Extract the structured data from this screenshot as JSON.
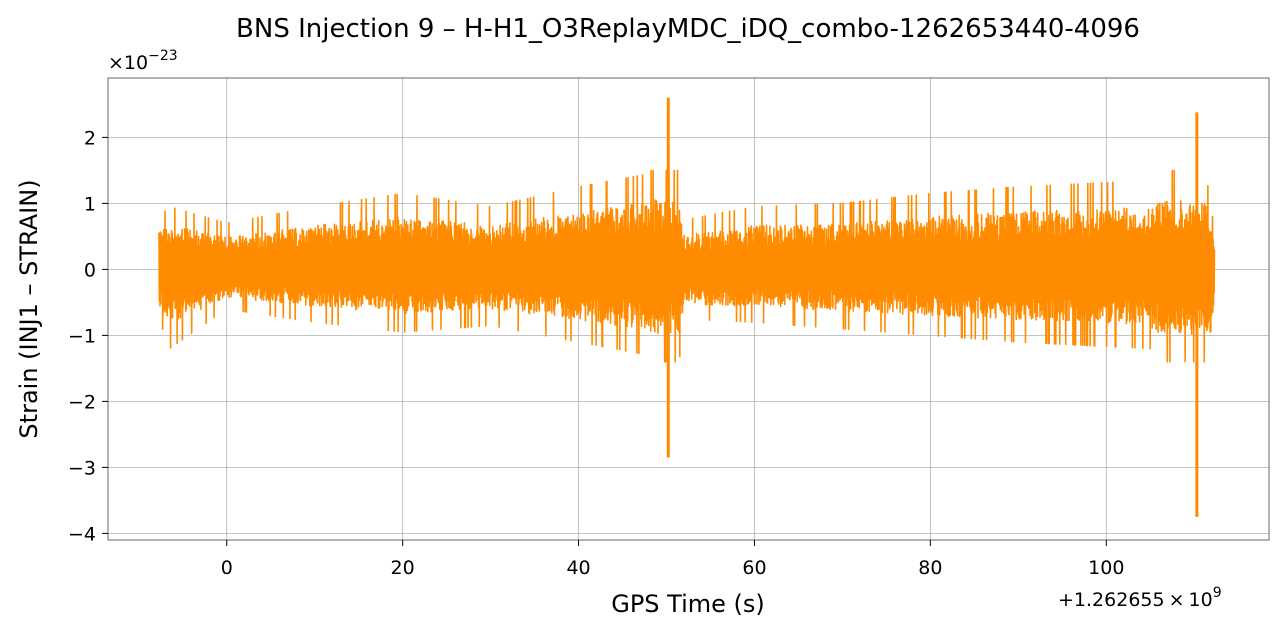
{
  "chart_data": {
    "type": "line",
    "title": "BNS Injection 9 – H-H1_O3ReplayMDC_iDQ_combo-1262653440-4096",
    "xlabel": "GPS Time (s)",
    "ylabel": "Strain (INJ1 – STRAIN)",
    "x_offset_label": "+1.262655×10⁹",
    "x_offset_parts": {
      "base": "+1.262655",
      "times": "×",
      "ten": "10",
      "exp": "9"
    },
    "y_multiplier_parts": {
      "times": "×",
      "ten": "10",
      "exp": "−23"
    },
    "xlim": [
      -13.5,
      118.5
    ],
    "ylim": [
      -4.1,
      2.9
    ],
    "xticks": [
      0,
      20,
      40,
      60,
      80,
      100
    ],
    "xtick_labels": [
      "0",
      "20",
      "40",
      "60",
      "80",
      "100"
    ],
    "yticks": [
      2,
      1,
      0,
      -1,
      -2,
      -3,
      -4
    ],
    "ytick_labels": [
      "2",
      "1",
      "0",
      "−1",
      "−2",
      "−3",
      "−4"
    ],
    "grid": true,
    "color": "#ff8c00",
    "series": [
      {
        "x_range": [
          -7.7,
          112.3
        ],
        "envelope": [
          {
            "x": -7.7,
            "lo": -0.75,
            "hi": 0.8
          },
          {
            "x": -6.5,
            "lo": -1.2,
            "hi": 0.95
          },
          {
            "x": 0,
            "lo": -0.6,
            "hi": 0.7
          },
          {
            "x": 10,
            "lo": -0.8,
            "hi": 0.95
          },
          {
            "x": 20,
            "lo": -0.95,
            "hi": 1.15
          },
          {
            "x": 30,
            "lo": -0.85,
            "hi": 0.95
          },
          {
            "x": 40,
            "lo": -1.1,
            "hi": 1.25
          },
          {
            "x": 48,
            "lo": -1.3,
            "hi": 1.45
          },
          {
            "x": 50.2,
            "lo": -2.85,
            "hi": 2.6
          },
          {
            "x": 52,
            "lo": -0.75,
            "hi": 0.75
          },
          {
            "x": 60,
            "lo": -0.8,
            "hi": 0.95
          },
          {
            "x": 70,
            "lo": -0.9,
            "hi": 1.0
          },
          {
            "x": 80,
            "lo": -1.0,
            "hi": 1.15
          },
          {
            "x": 90,
            "lo": -1.1,
            "hi": 1.25
          },
          {
            "x": 105,
            "lo": -1.2,
            "hi": 1.35
          },
          {
            "x": 110.3,
            "lo": -3.75,
            "hi": 2.38
          },
          {
            "x": 112.3,
            "lo": -0.75,
            "hi": 0.6
          }
        ]
      }
    ]
  }
}
